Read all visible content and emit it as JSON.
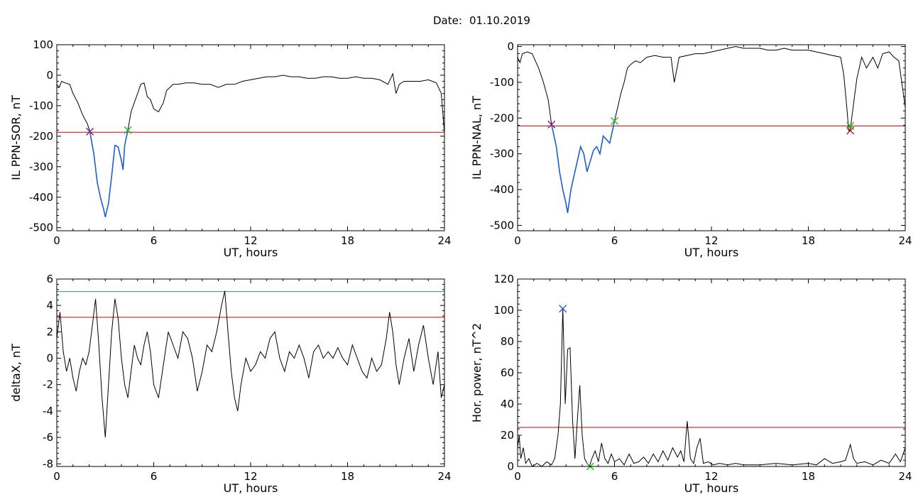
{
  "figure": {
    "date_label": "Date:",
    "date_value": "01.10.2019"
  },
  "colors": {
    "trace": "#000000",
    "threshold": "#d00000",
    "highlight": "#1f5fd0",
    "upper_threshold": "#2a8c9a",
    "marker_start": "#7a1f7a",
    "marker_end": "#20c020",
    "marker_end_dark": "#c01010",
    "marker_peak": "#3050e0"
  },
  "chart_data": [
    {
      "type": "line",
      "ylabel": "IL PPN-SOR, nT",
      "xlabel": "UT, hours",
      "xlim": [
        0,
        24
      ],
      "ylim": [
        -510,
        100
      ],
      "xticks": [
        0,
        6,
        12,
        18,
        24
      ],
      "yticks": [
        -500,
        -400,
        -300,
        -200,
        -100,
        0,
        100
      ],
      "threshold": -187,
      "highlight_range": [
        2.05,
        4.4
      ],
      "markers": [
        {
          "x": 2.05,
          "y": -185,
          "kind": "start"
        },
        {
          "x": 4.4,
          "y": -180,
          "kind": "end"
        }
      ],
      "x": [
        0,
        0.15,
        0.3,
        0.5,
        0.8,
        1.0,
        1.3,
        1.6,
        1.9,
        2.05,
        2.3,
        2.5,
        2.7,
        2.9,
        3.0,
        3.2,
        3.4,
        3.6,
        3.8,
        4.0,
        4.1,
        4.2,
        4.4,
        4.6,
        4.8,
        5.0,
        5.2,
        5.4,
        5.6,
        5.8,
        6.0,
        6.3,
        6.6,
        6.8,
        7.0,
        7.2,
        7.5,
        8.0,
        8.5,
        9.0,
        9.5,
        10.0,
        10.5,
        11.0,
        11.5,
        12.0,
        12.5,
        13.0,
        13.5,
        14.0,
        14.5,
        15.0,
        15.5,
        16.0,
        16.5,
        17.0,
        17.5,
        18.0,
        18.5,
        19.0,
        19.5,
        20.0,
        20.5,
        20.8,
        21.0,
        21.2,
        21.5,
        22.0,
        22.5,
        23.0,
        23.5,
        23.8,
        24.0
      ],
      "y": [
        -30,
        -40,
        -20,
        -25,
        -30,
        -60,
        -90,
        -130,
        -160,
        -185,
        -260,
        -350,
        -400,
        -440,
        -465,
        -420,
        -330,
        -230,
        -235,
        -280,
        -310,
        -230,
        -180,
        -120,
        -90,
        -60,
        -30,
        -25,
        -70,
        -80,
        -110,
        -120,
        -90,
        -50,
        -40,
        -30,
        -30,
        -25,
        -25,
        -30,
        -30,
        -40,
        -30,
        -30,
        -20,
        -15,
        -10,
        -5,
        -5,
        0,
        -5,
        -5,
        -10,
        -10,
        -5,
        -5,
        -10,
        -10,
        -5,
        -10,
        -10,
        -15,
        -30,
        5,
        -60,
        -30,
        -20,
        -20,
        -20,
        -15,
        -25,
        -60,
        -190
      ]
    },
    {
      "type": "line",
      "ylabel": "IL PPN-NAL, nT",
      "xlabel": "UT, hours",
      "xlim": [
        0,
        24
      ],
      "ylim": [
        -515,
        5
      ],
      "xticks": [
        0,
        6,
        12,
        18,
        24
      ],
      "yticks": [
        -500,
        -400,
        -300,
        -200,
        -100,
        0
      ],
      "threshold": -222,
      "highlight_range": [
        2.1,
        6.0
      ],
      "markers": [
        {
          "x": 2.1,
          "y": -218,
          "kind": "start"
        },
        {
          "x": 6.0,
          "y": -208,
          "kind": "end"
        },
        {
          "x": 20.6,
          "y": -235,
          "kind": "end_dark"
        },
        {
          "x": 20.6,
          "y": -222,
          "kind": "end"
        }
      ],
      "x": [
        0,
        0.15,
        0.3,
        0.6,
        0.9,
        1.1,
        1.3,
        1.6,
        1.9,
        2.1,
        2.4,
        2.6,
        2.8,
        3.0,
        3.1,
        3.3,
        3.5,
        3.7,
        3.9,
        4.1,
        4.3,
        4.5,
        4.7,
        4.9,
        5.1,
        5.3,
        5.5,
        5.7,
        5.9,
        6.0,
        6.2,
        6.4,
        6.6,
        6.8,
        7.0,
        7.3,
        7.6,
        8.0,
        8.5,
        9.0,
        9.5,
        9.7,
        10.0,
        10.5,
        11.0,
        11.5,
        12.0,
        12.5,
        13.0,
        13.5,
        14.0,
        14.5,
        15.0,
        15.5,
        16.0,
        16.5,
        17.0,
        17.5,
        18.0,
        18.5,
        19.0,
        19.5,
        20.0,
        20.2,
        20.4,
        20.5,
        20.6,
        20.8,
        21.0,
        21.3,
        21.6,
        22.0,
        22.3,
        22.6,
        23.0,
        23.3,
        23.6,
        24.0
      ],
      "y": [
        -30,
        -45,
        -20,
        -15,
        -20,
        -40,
        -60,
        -100,
        -150,
        -218,
        -280,
        -350,
        -400,
        -440,
        -465,
        -400,
        -360,
        -320,
        -280,
        -300,
        -350,
        -320,
        -290,
        -280,
        -300,
        -250,
        -260,
        -270,
        -230,
        -208,
        -170,
        -130,
        -100,
        -60,
        -50,
        -40,
        -45,
        -30,
        -25,
        -30,
        -30,
        -100,
        -30,
        -25,
        -20,
        -20,
        -15,
        -10,
        -5,
        0,
        -5,
        -5,
        -5,
        -10,
        -10,
        -5,
        -10,
        -10,
        -10,
        -15,
        -20,
        -25,
        -30,
        -80,
        -180,
        -235,
        -230,
        -160,
        -90,
        -30,
        -60,
        -30,
        -60,
        -20,
        -15,
        -30,
        -40,
        -170
      ]
    },
    {
      "type": "line",
      "ylabel": "deltaX, nT",
      "xlabel": "UT, hours",
      "xlim": [
        0,
        24
      ],
      "ylim": [
        -8.2,
        6
      ],
      "xticks": [
        0,
        6,
        12,
        18,
        24
      ],
      "yticks": [
        -8,
        -6,
        -4,
        -2,
        0,
        2,
        4,
        6
      ],
      "threshold": 3.1,
      "upper_threshold": 5.05,
      "x": [
        0,
        0.2,
        0.4,
        0.6,
        0.8,
        1.0,
        1.2,
        1.4,
        1.6,
        1.8,
        2.0,
        2.2,
        2.4,
        2.6,
        2.8,
        3.0,
        3.2,
        3.4,
        3.6,
        3.8,
        4.0,
        4.2,
        4.4,
        4.6,
        4.8,
        5.0,
        5.2,
        5.4,
        5.6,
        5.8,
        6.0,
        6.3,
        6.6,
        6.9,
        7.2,
        7.5,
        7.8,
        8.1,
        8.4,
        8.7,
        9.0,
        9.3,
        9.6,
        9.9,
        10.2,
        10.4,
        10.6,
        10.8,
        11.0,
        11.2,
        11.4,
        11.7,
        12.0,
        12.3,
        12.6,
        12.9,
        13.2,
        13.5,
        13.8,
        14.1,
        14.4,
        14.7,
        15.0,
        15.3,
        15.6,
        15.9,
        16.2,
        16.5,
        16.8,
        17.1,
        17.4,
        17.7,
        18.0,
        18.3,
        18.6,
        18.9,
        19.2,
        19.5,
        19.8,
        20.1,
        20.4,
        20.6,
        20.8,
        21.0,
        21.2,
        21.5,
        21.8,
        22.1,
        22.4,
        22.7,
        23.0,
        23.3,
        23.6,
        23.8,
        24.0
      ],
      "y": [
        1.5,
        3.5,
        0.5,
        -1.0,
        0.0,
        -1.5,
        -2.5,
        -1.0,
        0.0,
        -0.5,
        0.5,
        2.5,
        4.5,
        1.0,
        -3.0,
        -6.0,
        -2.0,
        2.0,
        4.5,
        3.0,
        0.0,
        -2.0,
        -3.0,
        -1.0,
        1.0,
        0.0,
        -0.5,
        1.0,
        2.0,
        0.5,
        -2.0,
        -3.0,
        -0.5,
        2.0,
        1.0,
        0.0,
        2.0,
        1.5,
        0.0,
        -2.5,
        -1.0,
        1.0,
        0.5,
        2.0,
        4.0,
        5.1,
        2.0,
        -1.0,
        -3.0,
        -4.0,
        -2.0,
        0.0,
        -1.0,
        -0.5,
        0.5,
        0.0,
        1.5,
        2.0,
        0.0,
        -1.0,
        0.5,
        0.0,
        1.0,
        0.0,
        -1.5,
        0.5,
        1.0,
        0.0,
        0.5,
        0.0,
        0.8,
        0.0,
        -0.5,
        1.0,
        0.0,
        -1.0,
        -1.5,
        0.0,
        -1.0,
        -0.5,
        1.5,
        3.5,
        2.0,
        -0.5,
        -2.0,
        0.0,
        1.5,
        -1.0,
        1.0,
        2.5,
        0.0,
        -2.0,
        0.5,
        -3.0,
        -2.0
      ]
    },
    {
      "type": "line",
      "ylabel": "Hor. power, nT^2",
      "xlabel": "UT, hours",
      "xlim": [
        0,
        24
      ],
      "ylim": [
        0,
        120
      ],
      "xticks": [
        0,
        6,
        12,
        18,
        24
      ],
      "yticks": [
        0,
        20,
        40,
        60,
        80,
        100,
        120
      ],
      "threshold": 25,
      "markers": [
        {
          "x": 2.8,
          "y": 101,
          "kind": "peak"
        },
        {
          "x": 4.5,
          "y": 0,
          "kind": "end"
        }
      ],
      "x": [
        0,
        0.1,
        0.2,
        0.35,
        0.5,
        0.7,
        0.9,
        1.2,
        1.5,
        1.8,
        2.1,
        2.3,
        2.5,
        2.65,
        2.8,
        2.95,
        3.1,
        3.25,
        3.4,
        3.55,
        3.7,
        3.85,
        4.0,
        4.15,
        4.3,
        4.45,
        4.6,
        4.8,
        5.0,
        5.2,
        5.4,
        5.6,
        5.8,
        6.0,
        6.3,
        6.6,
        6.9,
        7.2,
        7.5,
        7.8,
        8.1,
        8.4,
        8.7,
        9.0,
        9.3,
        9.6,
        9.9,
        10.1,
        10.3,
        10.5,
        10.7,
        10.9,
        11.1,
        11.3,
        11.5,
        11.8,
        12.1,
        12.5,
        13.0,
        13.5,
        14.0,
        15.0,
        16.0,
        17.0,
        18.0,
        18.5,
        19.0,
        19.5,
        20.0,
        20.3,
        20.6,
        20.8,
        21.0,
        21.5,
        22.0,
        22.5,
        23.0,
        23.4,
        23.7,
        24.0
      ],
      "y": [
        12,
        20,
        5,
        12,
        2,
        5,
        0,
        2,
        0,
        3,
        1,
        5,
        20,
        40,
        101,
        40,
        75,
        76,
        30,
        5,
        30,
        52,
        20,
        5,
        2,
        0,
        5,
        10,
        3,
        15,
        5,
        2,
        8,
        3,
        5,
        1,
        8,
        2,
        3,
        6,
        2,
        8,
        3,
        10,
        4,
        12,
        6,
        10,
        3,
        29,
        5,
        2,
        12,
        18,
        2,
        3,
        1,
        2,
        1,
        2,
        1,
        1,
        2,
        1,
        2,
        1,
        5,
        2,
        3,
        4,
        14,
        5,
        2,
        3,
        1,
        4,
        2,
        8,
        3,
        12
      ]
    }
  ]
}
